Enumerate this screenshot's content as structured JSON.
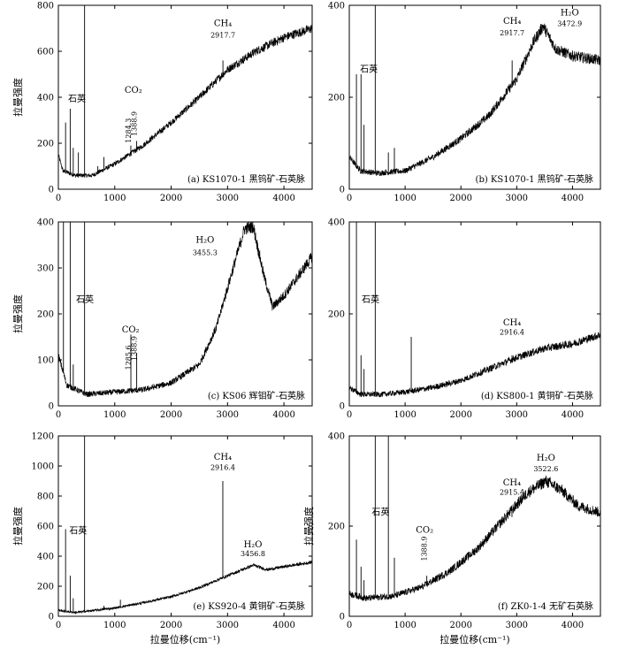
{
  "figure": {
    "xlabel": "拉曼位移(cm⁻¹)",
    "ylabel": "拉曼强度"
  },
  "chart_data": [
    {
      "id": "a",
      "type": "line",
      "caption": "(a) KS1070-1 黑钨矿-石英脉",
      "xlim": [
        0,
        4500
      ],
      "ylim": [
        0,
        800
      ],
      "xticks": [
        "0",
        "1000",
        "2000",
        "3000",
        "4000"
      ],
      "yticks": [
        "0",
        "200",
        "400",
        "600",
        "800"
      ],
      "show_xlabel": false,
      "show_ylabel": true,
      "peaks": [
        [
          128,
          290
        ],
        [
          210,
          350
        ],
        [
          264,
          180
        ],
        [
          355,
          160
        ],
        [
          465,
          800
        ],
        [
          700,
          100
        ],
        [
          808,
          140
        ],
        [
          1285,
          190
        ],
        [
          1389,
          210
        ],
        [
          2918,
          560
        ]
      ],
      "baseline": [
        [
          0,
          150
        ],
        [
          80,
          80
        ],
        [
          300,
          60
        ],
        [
          600,
          60
        ],
        [
          1000,
          110
        ],
        [
          1500,
          190
        ],
        [
          2000,
          290
        ],
        [
          2500,
          400
        ],
        [
          3000,
          520
        ],
        [
          3500,
          600
        ],
        [
          4000,
          660
        ],
        [
          4500,
          700
        ]
      ],
      "noise": 14,
      "annotations": [
        {
          "label": "石英",
          "x": 330,
          "y": 380,
          "size": "big"
        },
        {
          "label": "CO₂",
          "x": 1330,
          "y": 420,
          "size": "big"
        },
        {
          "label": "1284.3",
          "x": 1284,
          "y": 255,
          "size": "ann",
          "vertical": true
        },
        {
          "label": "1388.9",
          "x": 1388,
          "y": 285,
          "size": "ann",
          "vertical": true
        },
        {
          "label": "CH₄",
          "x": 2918,
          "y": 710,
          "size": "big"
        },
        {
          "label": "2917.7",
          "x": 2918,
          "y": 660,
          "size": "ann"
        }
      ]
    },
    {
      "id": "b",
      "type": "line",
      "caption": "(b) KS1070-1 黑钨矿-石英脉",
      "xlim": [
        0,
        4500
      ],
      "ylim": [
        0,
        400
      ],
      "xticks": [
        "0",
        "1000",
        "2000",
        "3000",
        "4000"
      ],
      "yticks": [
        "0",
        "200",
        "400"
      ],
      "show_xlabel": false,
      "show_ylabel": false,
      "peaks": [
        [
          128,
          250
        ],
        [
          210,
          250
        ],
        [
          264,
          140
        ],
        [
          465,
          400
        ],
        [
          700,
          80
        ],
        [
          808,
          90
        ],
        [
          2918,
          280
        ]
      ],
      "baseline": [
        [
          0,
          70
        ],
        [
          200,
          40
        ],
        [
          500,
          35
        ],
        [
          1000,
          40
        ],
        [
          1500,
          70
        ],
        [
          2000,
          110
        ],
        [
          2500,
          160
        ],
        [
          3000,
          240
        ],
        [
          3300,
          320
        ],
        [
          3473,
          355
        ],
        [
          3700,
          305
        ],
        [
          4000,
          290
        ],
        [
          4500,
          280
        ]
      ],
      "noise": 9,
      "annotations": [
        {
          "label": "石英",
          "x": 350,
          "y": 255,
          "size": "big"
        },
        {
          "label": "CH₄",
          "x": 2918,
          "y": 360,
          "size": "big"
        },
        {
          "label": "2917.7",
          "x": 2918,
          "y": 335,
          "size": "ann"
        },
        {
          "label": "H₂O",
          "x": 3950,
          "y": 378,
          "size": "big"
        },
        {
          "label": "3472.9",
          "x": 3950,
          "y": 355,
          "size": "ann"
        }
      ]
    },
    {
      "id": "c",
      "type": "line",
      "caption": "(c) KS06 辉钼矿-石英脉",
      "xlim": [
        0,
        4500
      ],
      "ylim": [
        0,
        400
      ],
      "xticks": [
        "0",
        "1000",
        "2000",
        "3000",
        "4000"
      ],
      "yticks": [
        "0",
        "100",
        "200",
        "300",
        "400"
      ],
      "show_xlabel": false,
      "show_ylabel": true,
      "peaks": [
        [
          90,
          400
        ],
        [
          210,
          400
        ],
        [
          264,
          90
        ],
        [
          465,
          400
        ],
        [
          1286,
          155
        ],
        [
          1389,
          115
        ]
      ],
      "baseline": [
        [
          0,
          110
        ],
        [
          150,
          45
        ],
        [
          500,
          25
        ],
        [
          1000,
          30
        ],
        [
          1500,
          35
        ],
        [
          2000,
          50
        ],
        [
          2500,
          90
        ],
        [
          2800,
          170
        ],
        [
          3100,
          300
        ],
        [
          3300,
          385
        ],
        [
          3455,
          390
        ],
        [
          3650,
          280
        ],
        [
          3800,
          215
        ],
        [
          4000,
          240
        ],
        [
          4300,
          290
        ],
        [
          4500,
          325
        ]
      ],
      "noise": 9,
      "annotations": [
        {
          "label": "石英",
          "x": 470,
          "y": 225,
          "size": "big"
        },
        {
          "label": "CO₂",
          "x": 1280,
          "y": 160,
          "size": "big"
        },
        {
          "label": "1285.6",
          "x": 1285,
          "y": 105,
          "size": "ann",
          "vertical": true
        },
        {
          "label": "1388.9",
          "x": 1388,
          "y": 125,
          "size": "ann",
          "vertical": true
        },
        {
          "label": "H₂O",
          "x": 2600,
          "y": 355,
          "size": "big"
        },
        {
          "label": "3455.3",
          "x": 2600,
          "y": 328,
          "size": "ann"
        }
      ]
    },
    {
      "id": "d",
      "type": "line",
      "caption": "(d) KS800-1 黄铜矿-石英脉",
      "xlim": [
        0,
        4500
      ],
      "ylim": [
        0,
        400
      ],
      "xticks": [
        "0",
        "1000",
        "2000",
        "3000",
        "4000"
      ],
      "yticks": [
        "0",
        "200",
        "400"
      ],
      "show_xlabel": false,
      "show_ylabel": false,
      "peaks": [
        [
          128,
          400
        ],
        [
          210,
          110
        ],
        [
          264,
          80
        ],
        [
          465,
          400
        ],
        [
          1110,
          150
        ],
        [
          2916,
          110
        ]
      ],
      "baseline": [
        [
          0,
          40
        ],
        [
          200,
          25
        ],
        [
          600,
          25
        ],
        [
          1000,
          30
        ],
        [
          1500,
          40
        ],
        [
          2000,
          55
        ],
        [
          2500,
          80
        ],
        [
          3000,
          105
        ],
        [
          3500,
          125
        ],
        [
          4000,
          135
        ],
        [
          4500,
          155
        ]
      ],
      "noise": 9,
      "annotations": [
        {
          "label": "石英",
          "x": 380,
          "y": 225,
          "size": "big"
        },
        {
          "label": "CH₄",
          "x": 2916,
          "y": 175,
          "size": "big"
        },
        {
          "label": "2916.4",
          "x": 2916,
          "y": 155,
          "size": "ann"
        }
      ]
    },
    {
      "id": "e",
      "type": "line",
      "caption": "(e) KS920-4 黄铜矿-石英脉",
      "xlim": [
        0,
        4500
      ],
      "ylim": [
        0,
        1200
      ],
      "xticks": [
        "0",
        "1000",
        "2000",
        "3000",
        "4000"
      ],
      "yticks": [
        "0",
        "200",
        "400",
        "600",
        "800",
        "1000",
        "1200"
      ],
      "show_xlabel": true,
      "show_ylabel": true,
      "peaks": [
        [
          128,
          580
        ],
        [
          210,
          270
        ],
        [
          264,
          120
        ],
        [
          465,
          1200
        ],
        [
          808,
          70
        ],
        [
          1100,
          110
        ],
        [
          2916,
          900
        ]
      ],
      "baseline": [
        [
          0,
          40
        ],
        [
          300,
          25
        ],
        [
          1000,
          55
        ],
        [
          1500,
          90
        ],
        [
          2000,
          130
        ],
        [
          2500,
          190
        ],
        [
          3000,
          270
        ],
        [
          3457,
          340
        ],
        [
          3700,
          310
        ],
        [
          4000,
          330
        ],
        [
          4500,
          360
        ]
      ],
      "noise": 12,
      "annotations": [
        {
          "label": "石英",
          "x": 350,
          "y": 550,
          "size": "big"
        },
        {
          "label": "CH₄",
          "x": 2916,
          "y": 1040,
          "size": "big"
        },
        {
          "label": "2916.4",
          "x": 2916,
          "y": 975,
          "size": "ann"
        },
        {
          "label": "H₂O",
          "x": 3450,
          "y": 460,
          "size": "big"
        },
        {
          "label": "3456.8",
          "x": 3450,
          "y": 400,
          "size": "ann"
        }
      ]
    },
    {
      "id": "f",
      "type": "line",
      "caption": "(f) ZK0-1-4 无矿石英脉",
      "xlim": [
        0,
        4500
      ],
      "ylim": [
        0,
        400
      ],
      "xticks": [
        "0",
        "1000",
        "2000",
        "3000",
        "4000"
      ],
      "yticks": [
        "0",
        "200",
        "400"
      ],
      "show_xlabel": true,
      "show_ylabel": true,
      "peaks": [
        [
          128,
          170
        ],
        [
          210,
          110
        ],
        [
          264,
          80
        ],
        [
          465,
          400
        ],
        [
          700,
          400
        ],
        [
          808,
          130
        ],
        [
          1389,
          90
        ],
        [
          2915,
          220
        ]
      ],
      "baseline": [
        [
          0,
          50
        ],
        [
          300,
          40
        ],
        [
          800,
          45
        ],
        [
          1300,
          65
        ],
        [
          1800,
          100
        ],
        [
          2300,
          150
        ],
        [
          2800,
          220
        ],
        [
          3200,
          275
        ],
        [
          3523,
          300
        ],
        [
          3800,
          280
        ],
        [
          4100,
          245
        ],
        [
          4500,
          230
        ]
      ],
      "noise": 10,
      "annotations": [
        {
          "label": "石英",
          "x": 560,
          "y": 225,
          "size": "big"
        },
        {
          "label": "CO₂",
          "x": 1350,
          "y": 185,
          "size": "big"
        },
        {
          "label": "1388.9",
          "x": 1388,
          "y": 150,
          "size": "ann",
          "vertical": true
        },
        {
          "label": "CH₄",
          "x": 2915,
          "y": 290,
          "size": "big"
        },
        {
          "label": "2915.4",
          "x": 2915,
          "y": 270,
          "size": "ann"
        },
        {
          "label": "H₂O",
          "x": 3523,
          "y": 345,
          "size": "big"
        },
        {
          "label": "3522.6",
          "x": 3523,
          "y": 322,
          "size": "ann"
        }
      ]
    }
  ]
}
